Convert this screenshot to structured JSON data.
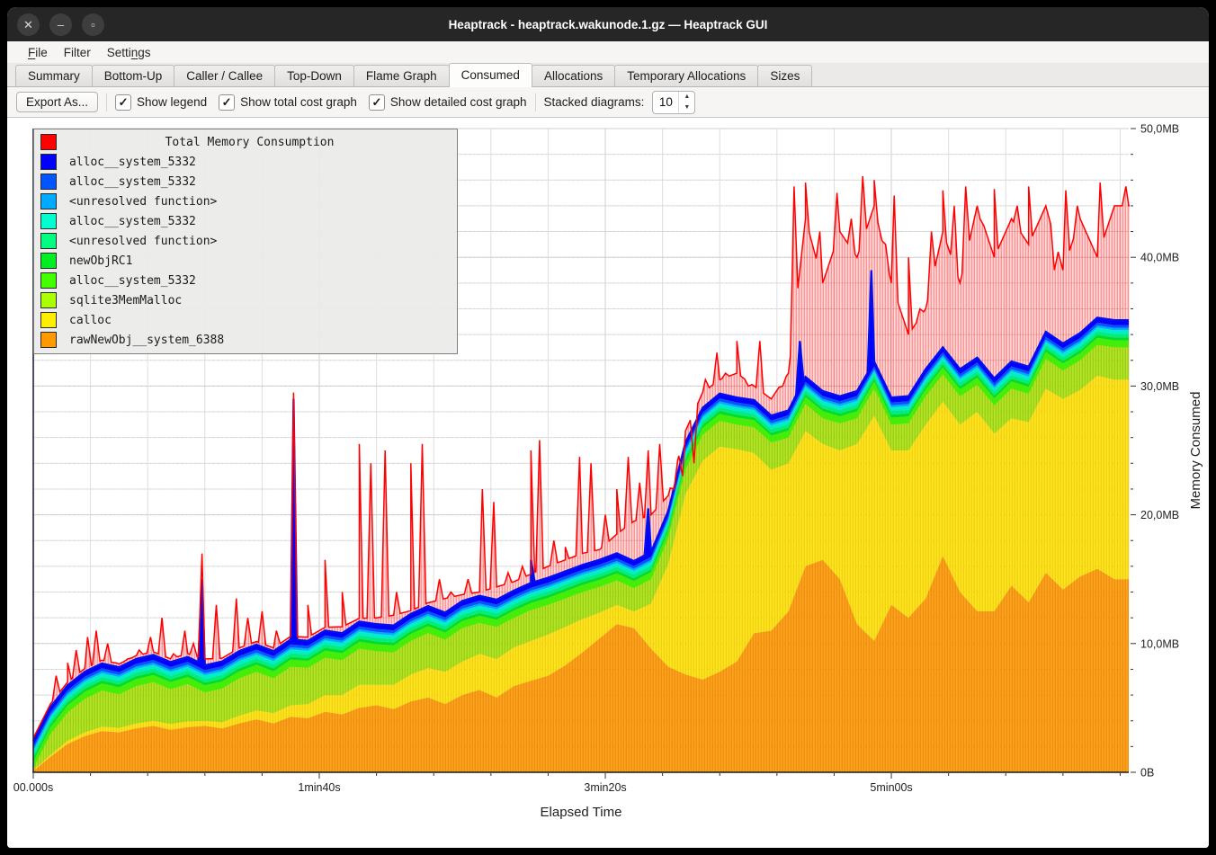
{
  "window": {
    "title": "Heaptrack - heaptrack.wakunode.1.gz — Heaptrack GUI",
    "controls": [
      {
        "name": "close",
        "glyph": "✕"
      },
      {
        "name": "minimize",
        "glyph": "–"
      },
      {
        "name": "maximize",
        "glyph": "▫"
      }
    ]
  },
  "menu": {
    "items": [
      {
        "label": "File",
        "accel_index": 0
      },
      {
        "label": "Filter",
        "accel_index": null
      },
      {
        "label": "Settings",
        "accel_index": 5
      }
    ]
  },
  "tabs": [
    {
      "label": "Summary",
      "active": false
    },
    {
      "label": "Bottom-Up",
      "active": false
    },
    {
      "label": "Caller / Callee",
      "active": false
    },
    {
      "label": "Top-Down",
      "active": false
    },
    {
      "label": "Flame Graph",
      "active": false
    },
    {
      "label": "Consumed",
      "active": true
    },
    {
      "label": "Allocations",
      "active": false
    },
    {
      "label": "Temporary Allocations",
      "active": false
    },
    {
      "label": "Sizes",
      "active": false
    }
  ],
  "toolbar": {
    "export_label": "Export As...",
    "checkboxes": [
      {
        "label": "Show legend",
        "checked": true
      },
      {
        "label": "Show total cost graph",
        "checked": true
      },
      {
        "label": "Show detailed cost graph",
        "checked": true
      }
    ],
    "stacked_label": "Stacked diagrams:",
    "stacked_value": "10"
  },
  "chart_data": {
    "type": "area",
    "stacked": true,
    "xlabel": "Elapsed Time",
    "ylabel": "Memory Consumed",
    "x_range_seconds": [
      0,
      383
    ],
    "y_range_mb": [
      0,
      50
    ],
    "grid": {
      "x_step_seconds": 20,
      "y_step_mb": 2,
      "on": true
    },
    "x_ticks": [
      {
        "t": 0,
        "label": "00.000s"
      },
      {
        "t": 100,
        "label": "1min40s"
      },
      {
        "t": 200,
        "label": "3min20s"
      },
      {
        "t": 300,
        "label": "5min00s"
      }
    ],
    "y_ticks": [
      {
        "v": 0,
        "label": "0B"
      },
      {
        "v": 10,
        "label": "10,0MB"
      },
      {
        "v": 20,
        "label": "20,0MB"
      },
      {
        "v": 30,
        "label": "30,0MB"
      },
      {
        "v": 40,
        "label": "40,0MB"
      },
      {
        "v": 50,
        "label": "50,0MB"
      }
    ],
    "legend": [
      {
        "color": "#ff0000",
        "label": "Total Memory Consumption",
        "is_title": true
      },
      {
        "color": "#0000ff",
        "label": "alloc__system_5332"
      },
      {
        "color": "#0055ff",
        "label": "alloc__system_5332"
      },
      {
        "color": "#00aaff",
        "label": "<unresolved function>"
      },
      {
        "color": "#00ffd0",
        "label": "alloc__system_5332"
      },
      {
        "color": "#00ff80",
        "label": "<unresolved function>"
      },
      {
        "color": "#00ee22",
        "label": "newObjRC1"
      },
      {
        "color": "#44ff00",
        "label": "alloc__system_5332"
      },
      {
        "color": "#aaff00",
        "label": "sqlite3MemMalloc"
      },
      {
        "color": "#ffee00",
        "label": "calloc"
      },
      {
        "color": "#ff9900",
        "label": "rawNewObj__system_6388"
      }
    ],
    "x_samples": {
      "start": 0,
      "step": 6,
      "count": 64
    },
    "stack": [
      {
        "name": "rawNewObj__system_6388",
        "color": "#ffa21c",
        "stripe": "rgba(205,115,0,0.5)",
        "values": [
          0.1,
          1.2,
          2.2,
          2.8,
          3.2,
          3.1,
          3.4,
          3.6,
          3.3,
          3.5,
          3.6,
          3.4,
          3.8,
          4.1,
          3.8,
          4.3,
          4.2,
          4.7,
          4.5,
          5.0,
          5.2,
          4.9,
          5.5,
          5.8,
          5.3,
          6.0,
          6.4,
          5.8,
          6.7,
          7.1,
          7.5,
          8.3,
          9.3,
          10.4,
          11.5,
          11.2,
          9.6,
          8.2,
          7.6,
          7.2,
          7.8,
          8.6,
          10.8,
          11.0,
          12.5,
          16.0,
          16.5,
          15.0,
          11.5,
          10.2,
          13.0,
          12.0,
          13.5,
          16.8,
          14.0,
          12.5,
          12.5,
          14.5,
          13.2,
          15.5,
          14.2,
          15.2,
          15.8,
          15.0
        ]
      },
      {
        "name": "calloc",
        "color": "#ffe41e",
        "stripe": "rgba(212,175,0,0.45)",
        "values": [
          0.05,
          0.15,
          0.25,
          0.3,
          0.35,
          0.35,
          0.4,
          0.4,
          0.45,
          0.45,
          0.4,
          0.5,
          0.6,
          0.7,
          0.8,
          0.9,
          1.1,
          1.3,
          1.5,
          1.8,
          1.6,
          1.9,
          2.1,
          2.3,
          2.5,
          2.6,
          2.8,
          3.0,
          3.0,
          3.1,
          3.2,
          3.0,
          2.6,
          2.0,
          1.5,
          1.3,
          3.5,
          8.0,
          14.0,
          17.0,
          17.5,
          16.5,
          14.0,
          12.5,
          11.5,
          10.5,
          9.0,
          10.0,
          14.0,
          17.5,
          12.0,
          13.0,
          13.5,
          12.0,
          13.0,
          15.5,
          13.8,
          13.0,
          14.0,
          14.3,
          14.8,
          14.5,
          15.0,
          15.5
        ]
      },
      {
        "name": "sqlite3MemMalloc",
        "color": "#b2e625",
        "stripe": "rgba(120,165,0,0.5)",
        "values": [
          0.15,
          1.6,
          2.2,
          2.6,
          2.8,
          2.6,
          2.9,
          3.0,
          2.7,
          2.9,
          2.2,
          2.6,
          2.9,
          3.0,
          2.7,
          3.0,
          2.8,
          2.9,
          2.7,
          2.8,
          2.6,
          2.5,
          2.6,
          2.7,
          2.5,
          2.6,
          2.4,
          2.5,
          2.3,
          2.4,
          2.3,
          2.2,
          2.1,
          2.0,
          1.9,
          1.8,
          1.9,
          2.0,
          1.9,
          2.0,
          2.0,
          1.9,
          2.0,
          2.1,
          2.0,
          2.1,
          2.0,
          2.1,
          2.0,
          2.1,
          2.0,
          2.1,
          2.2,
          2.1,
          2.2,
          2.1,
          2.2,
          2.3,
          2.2,
          2.3,
          2.2,
          2.3,
          2.4,
          2.5
        ]
      },
      {
        "name": "alloc__system_5332",
        "color": "#44ee08",
        "values": 0.55
      },
      {
        "name": "newObjRC1",
        "color": "#00dd2a",
        "values": 0.22
      },
      {
        "name": "<unresolved function>",
        "color": "#00ee80",
        "values": 0.28
      },
      {
        "name": "alloc__system_5332",
        "color": "#00eecc",
        "values": 0.3
      },
      {
        "name": "<unresolved function>",
        "color": "#00aaff",
        "values": 0.16
      },
      {
        "name": "alloc__system_5332",
        "color": "#0055ff",
        "values": 0.22
      },
      {
        "name": "alloc__system_5332",
        "color": "#0000ff",
        "values": 0.38
      }
    ],
    "top_line": {
      "color": "#0010ee",
      "spikes": [
        [
          59,
          15
        ],
        [
          91,
          29
        ],
        [
          174,
          16.5
        ],
        [
          215,
          20.5
        ],
        [
          268,
          33.5
        ],
        [
          293,
          39
        ]
      ]
    },
    "total": {
      "label": "Total Memory Consumption",
      "color": "#ff0000",
      "fill": "rgba(255,0,0,0.15)",
      "stripe": "rgba(255,0,0,0.42)",
      "values": [
        0.8,
        5,
        6.5,
        7,
        7.2,
        7,
        7.5,
        7.3,
        7.8,
        8,
        8.8,
        8.6,
        9,
        9.3,
        9,
        9.6,
        10.5,
        11,
        11.3,
        11.6,
        12,
        12.2,
        12.5,
        13,
        13.5,
        13.8,
        14,
        14.4,
        14.8,
        15.4,
        16,
        16.5,
        17,
        17.3,
        18.5,
        19.5,
        20,
        21.5,
        26.5,
        29.5,
        30.5,
        31,
        30,
        29,
        31,
        43,
        38,
        42,
        40,
        44,
        38,
        34,
        36,
        42,
        38,
        44,
        40,
        43,
        41,
        44,
        39,
        43,
        40,
        44
      ],
      "spikes": [
        [
          8,
          7.5
        ],
        [
          12,
          8.5
        ],
        [
          15,
          9.5
        ],
        [
          19,
          10.5
        ],
        [
          22,
          11
        ],
        [
          26,
          10
        ],
        [
          29,
          8.5
        ],
        [
          33,
          8.8
        ],
        [
          37,
          9.5
        ],
        [
          41,
          10.5
        ],
        [
          45,
          12
        ],
        [
          49,
          9.2
        ],
        [
          53,
          11
        ],
        [
          56,
          10
        ],
        [
          59,
          17
        ],
        [
          64,
          13
        ],
        [
          71,
          13.5
        ],
        [
          75,
          12
        ],
        [
          80,
          12.5
        ],
        [
          85,
          11
        ],
        [
          91,
          29.5
        ],
        [
          96,
          13
        ],
        [
          102,
          16.5
        ],
        [
          108,
          14
        ],
        [
          114,
          25.5
        ],
        [
          118,
          24
        ],
        [
          123,
          25
        ],
        [
          127,
          14
        ],
        [
          132,
          24
        ],
        [
          136,
          25.5
        ],
        [
          142,
          15
        ],
        [
          146,
          14
        ],
        [
          152,
          15
        ],
        [
          157,
          22
        ],
        [
          161,
          21
        ],
        [
          166,
          15.5
        ],
        [
          171,
          16
        ],
        [
          174,
          25
        ],
        [
          177,
          25.8
        ],
        [
          182,
          18
        ],
        [
          186,
          17.5
        ],
        [
          191,
          24.5
        ],
        [
          195,
          24
        ],
        [
          200,
          20
        ],
        [
          204,
          22
        ],
        [
          208,
          24.5
        ],
        [
          212,
          22.5
        ],
        [
          215,
          25
        ],
        [
          219,
          25.5
        ],
        [
          224,
          22
        ],
        [
          227,
          23
        ],
        [
          231,
          24
        ],
        [
          235,
          30.5
        ],
        [
          239,
          32.6
        ],
        [
          242,
          31
        ],
        [
          246,
          33.5
        ],
        [
          250,
          30
        ],
        [
          254,
          33.5
        ],
        [
          258,
          29
        ],
        [
          262,
          30
        ],
        [
          266,
          45.5
        ],
        [
          270,
          45.8
        ],
        [
          275,
          42
        ],
        [
          281,
          45
        ],
        [
          286,
          43
        ],
        [
          290,
          46.3
        ],
        [
          294,
          46
        ],
        [
          298,
          41
        ],
        [
          301,
          44.8
        ],
        [
          306,
          40
        ],
        [
          310,
          36
        ],
        [
          314,
          42
        ],
        [
          318,
          45.2
        ],
        [
          322,
          44
        ],
        [
          326,
          45.5
        ],
        [
          331,
          43
        ],
        [
          336,
          45.3
        ],
        [
          340,
          42
        ],
        [
          344,
          44
        ],
        [
          348,
          45.5
        ],
        [
          353,
          43.5
        ],
        [
          357,
          39
        ],
        [
          361,
          45.2
        ],
        [
          365,
          44
        ],
        [
          369,
          41.5
        ],
        [
          373,
          45.8
        ],
        [
          378,
          44
        ],
        [
          382,
          45.5
        ]
      ]
    }
  }
}
